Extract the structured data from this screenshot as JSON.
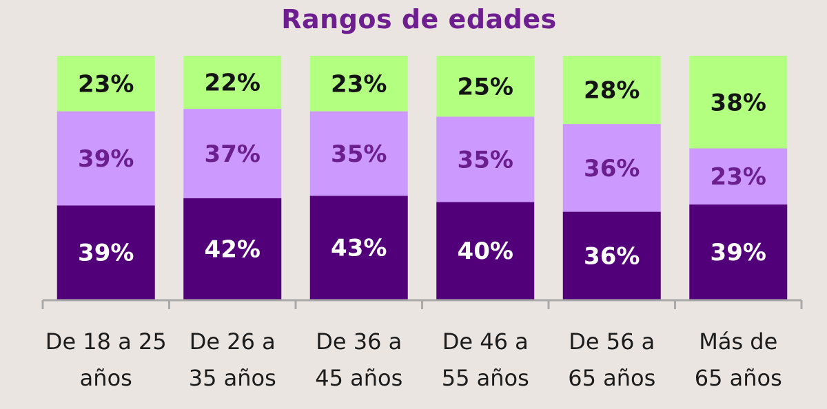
{
  "chart_data": {
    "type": "bar",
    "stacked": true,
    "title": "Rangos de edades",
    "categories": [
      [
        "De 18 a 25",
        "años"
      ],
      [
        "De 26 a",
        "35 años"
      ],
      [
        "De 36 a",
        "45 años"
      ],
      [
        "De 46 a",
        "55 años"
      ],
      [
        "De 56 a",
        "65 años"
      ],
      [
        "Más de",
        "65 años"
      ]
    ],
    "series": [
      {
        "values": [
          39,
          42,
          43,
          40,
          36,
          39
        ],
        "labels": [
          "39%",
          "42%",
          "43%",
          "40%",
          "36%",
          "39%"
        ],
        "color": "#520079",
        "label_color": "#ffffff"
      },
      {
        "values": [
          39,
          37,
          35,
          35,
          36,
          23
        ],
        "labels": [
          "39%",
          "37%",
          "35%",
          "35%",
          "36%",
          "23%"
        ],
        "color": "#cc99ff",
        "label_color": "#6b1f8f"
      },
      {
        "values": [
          23,
          22,
          23,
          25,
          28,
          38
        ],
        "labels": [
          "23%",
          "22%",
          "23%",
          "25%",
          "28%",
          "38%"
        ],
        "color": "#b3ff80",
        "label_color": "#141414"
      }
    ],
    "ylim": [
      0,
      100
    ],
    "grid": false,
    "legend": "none"
  }
}
